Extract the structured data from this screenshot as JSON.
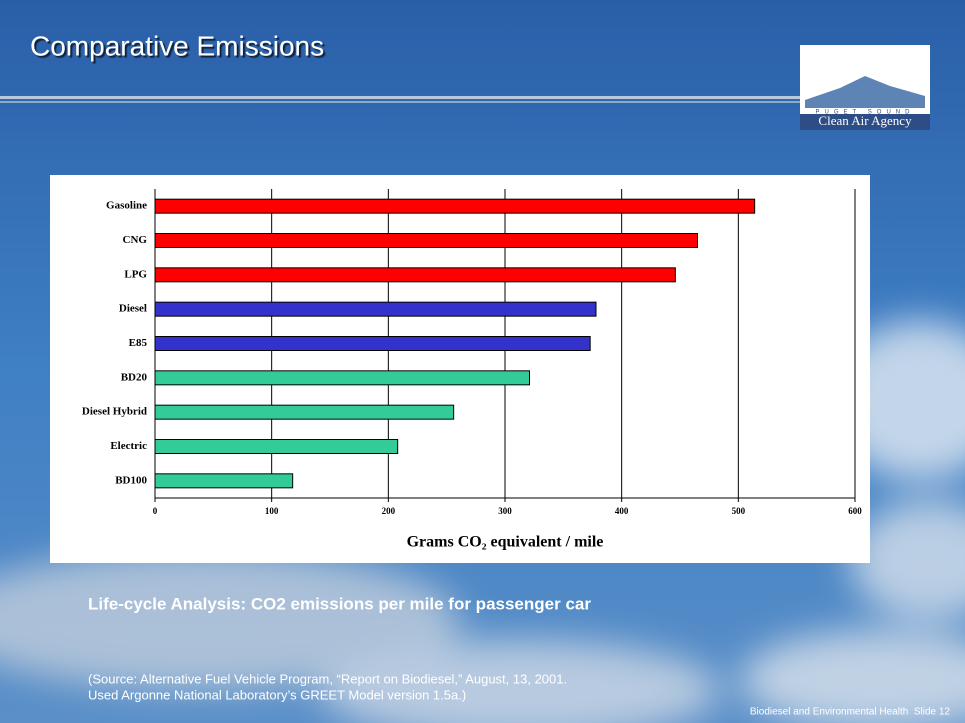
{
  "slide": {
    "title": "Comparative Emissions",
    "logo": {
      "top": "PUGET SOUND",
      "name": "Clean Air Agency"
    },
    "caption": "Life-cycle Analysis: CO2 emissions per mile for passenger car",
    "source": [
      "(Source: Alternative Fuel Vehicle Program, “Report on Biodiesel,” August, 13, 2001.",
      "Used Argonne National Laboratory’s GREET Model version 1.5a.)"
    ],
    "footer": "Biodiesel and Environmental Health  Slide 12"
  },
  "chart_data": {
    "type": "hbar",
    "categories": [
      "Gasoline",
      "CNG",
      "LPG",
      "Diesel",
      "E85",
      "BD20",
      "Diesel Hybrid",
      "Electric",
      "BD100"
    ],
    "values": [
      514,
      465,
      446,
      378,
      373,
      321,
      256,
      208,
      118
    ],
    "colors": [
      "#ff0000",
      "#ff0000",
      "#ff0000",
      "#3333cc",
      "#3333cc",
      "#33cc99",
      "#33cc99",
      "#33cc99",
      "#33cc99"
    ],
    "xlabel": "Grams CO₂ equivalent / mile",
    "xlim": [
      0,
      600
    ],
    "xticks": [
      0,
      100,
      200,
      300,
      400,
      500,
      600
    ],
    "grid": true
  }
}
